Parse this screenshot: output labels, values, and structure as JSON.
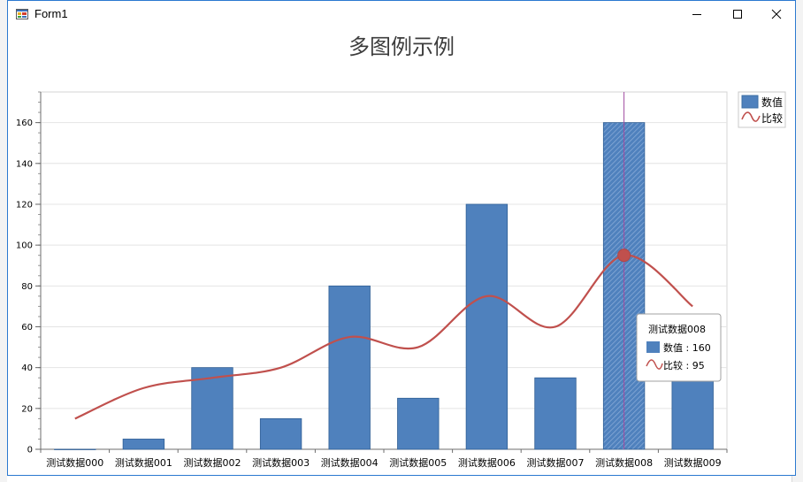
{
  "window": {
    "title": "Form1",
    "icon": "winforms-app-icon",
    "buttons": [
      "minimize-icon",
      "maximize-icon",
      "close-icon"
    ]
  },
  "chart_data": {
    "type": "bar",
    "title": "多图例示例",
    "categories": [
      "测试数据000",
      "测试数据001",
      "测试数据002",
      "测试数据003",
      "测试数据004",
      "测试数据005",
      "测试数据006",
      "测试数据007",
      "测试数据008",
      "测试数据009"
    ],
    "series": [
      {
        "name": "数值",
        "type": "bar",
        "color": "#4f81bd",
        "values": [
          0,
          5,
          40,
          15,
          80,
          25,
          120,
          35,
          160,
          35
        ]
      },
      {
        "name": "比较",
        "type": "line",
        "color": "#c0504d",
        "values": [
          15,
          30,
          35,
          40,
          55,
          50,
          75,
          60,
          95,
          70
        ]
      }
    ],
    "y_ticks": [
      0,
      20,
      40,
      60,
      80,
      100,
      120,
      140,
      160
    ],
    "ylim": [
      0,
      175
    ],
    "grid": true,
    "legend_position": "top-right",
    "highlight_index": 8,
    "crosshair_color": "#a04ca0"
  },
  "tooltip": {
    "title": "测试数据008",
    "rows": [
      {
        "series": "数值",
        "text": "数值 : 160"
      },
      {
        "series": "比较",
        "text": "比较 : 95"
      }
    ]
  }
}
